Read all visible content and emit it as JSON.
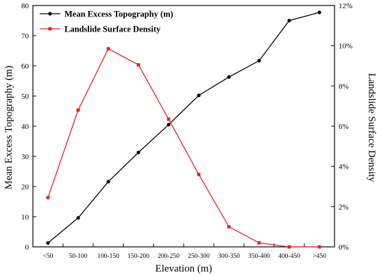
{
  "chart_data": {
    "type": "line",
    "categories": [
      "<50",
      "50-100",
      "100-150",
      "150-200",
      "200-250",
      "250-300",
      "300-350",
      "350-400",
      "400-450",
      ">450"
    ],
    "xlabel": "Elevation (m)",
    "ylabel": "Mean Excess Topography (m)",
    "y2label": "Landslide Surface Density",
    "ylim": [
      0,
      80
    ],
    "y2lim": [
      0,
      12
    ],
    "yticks": [
      "0",
      "10",
      "20",
      "30",
      "40",
      "50",
      "60",
      "70",
      "80"
    ],
    "y2ticks": [
      "0%",
      "2%",
      "4%",
      "6%",
      "8%",
      "10%",
      "12%"
    ],
    "grid": false,
    "legend_position": "top-left",
    "series": [
      {
        "name": "Mean Excess Topography (m)",
        "axis": "left",
        "color": "#000000",
        "marker": "circle",
        "values": [
          1.3,
          9.6,
          21.6,
          31.3,
          40.5,
          50.2,
          56.3,
          61.7,
          75.0,
          77.7
        ]
      },
      {
        "name": "Landslide Surface Density",
        "axis": "right",
        "color": "#e8202a",
        "marker": "square",
        "values": [
          2.45,
          6.8,
          9.85,
          9.05,
          6.35,
          3.6,
          1.0,
          0.2,
          0.0,
          0.0
        ]
      }
    ]
  }
}
